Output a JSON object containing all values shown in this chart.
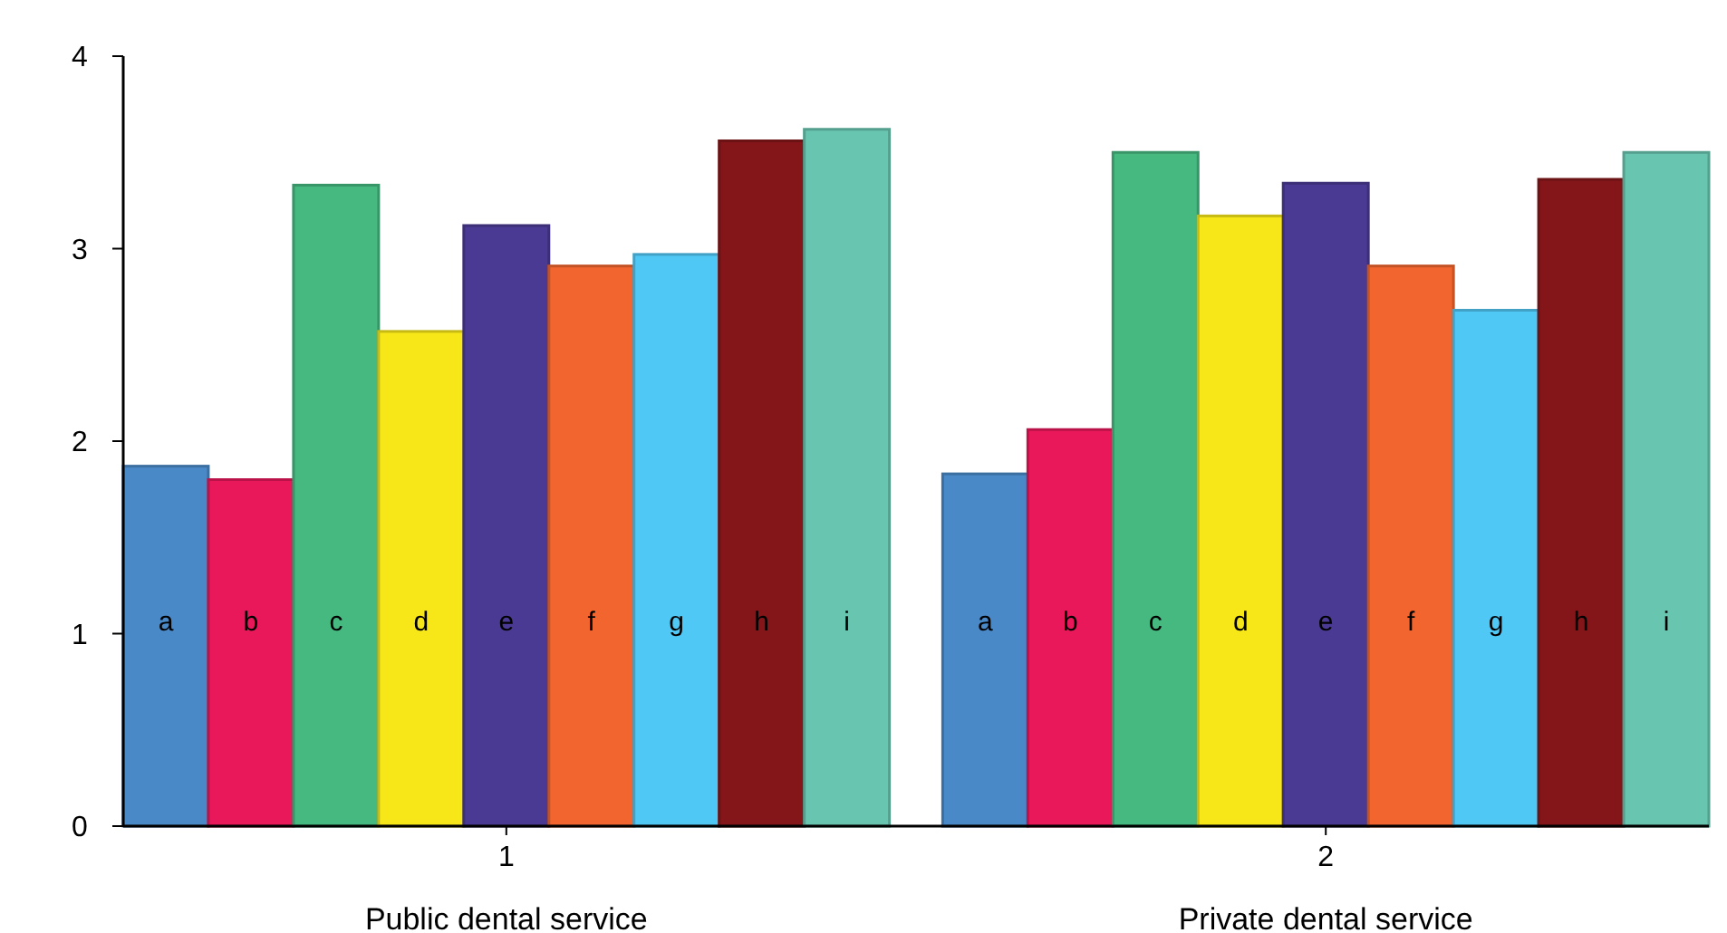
{
  "chart_data": {
    "type": "bar",
    "categories": [
      "1",
      "2"
    ],
    "ylim": [
      0,
      4
    ],
    "yticks": [
      0,
      1,
      2,
      3,
      4
    ],
    "grid": false,
    "legend": false,
    "series": [
      {
        "name": "a",
        "color": "#4a89c8",
        "values": [
          1.87,
          1.83
        ]
      },
      {
        "name": "b",
        "color": "#e8185a",
        "values": [
          1.8,
          2.06
        ]
      },
      {
        "name": "c",
        "color": "#45b97f",
        "values": [
          3.33,
          3.5
        ]
      },
      {
        "name": "d",
        "color": "#f7e718",
        "values": [
          2.57,
          3.17
        ]
      },
      {
        "name": "e",
        "color": "#4b3a93",
        "values": [
          3.12,
          3.34
        ]
      },
      {
        "name": "f",
        "color": "#f2652e",
        "values": [
          2.91,
          2.91
        ]
      },
      {
        "name": "g",
        "color": "#50c8f5",
        "values": [
          2.97,
          2.68
        ]
      },
      {
        "name": "h",
        "color": "#84161a",
        "values": [
          3.56,
          3.36
        ]
      },
      {
        "name": "i",
        "color": "#68c5b0",
        "values": [
          3.62,
          3.5
        ]
      }
    ],
    "annotations": [
      "Public dental service",
      "Private dental service"
    ]
  }
}
